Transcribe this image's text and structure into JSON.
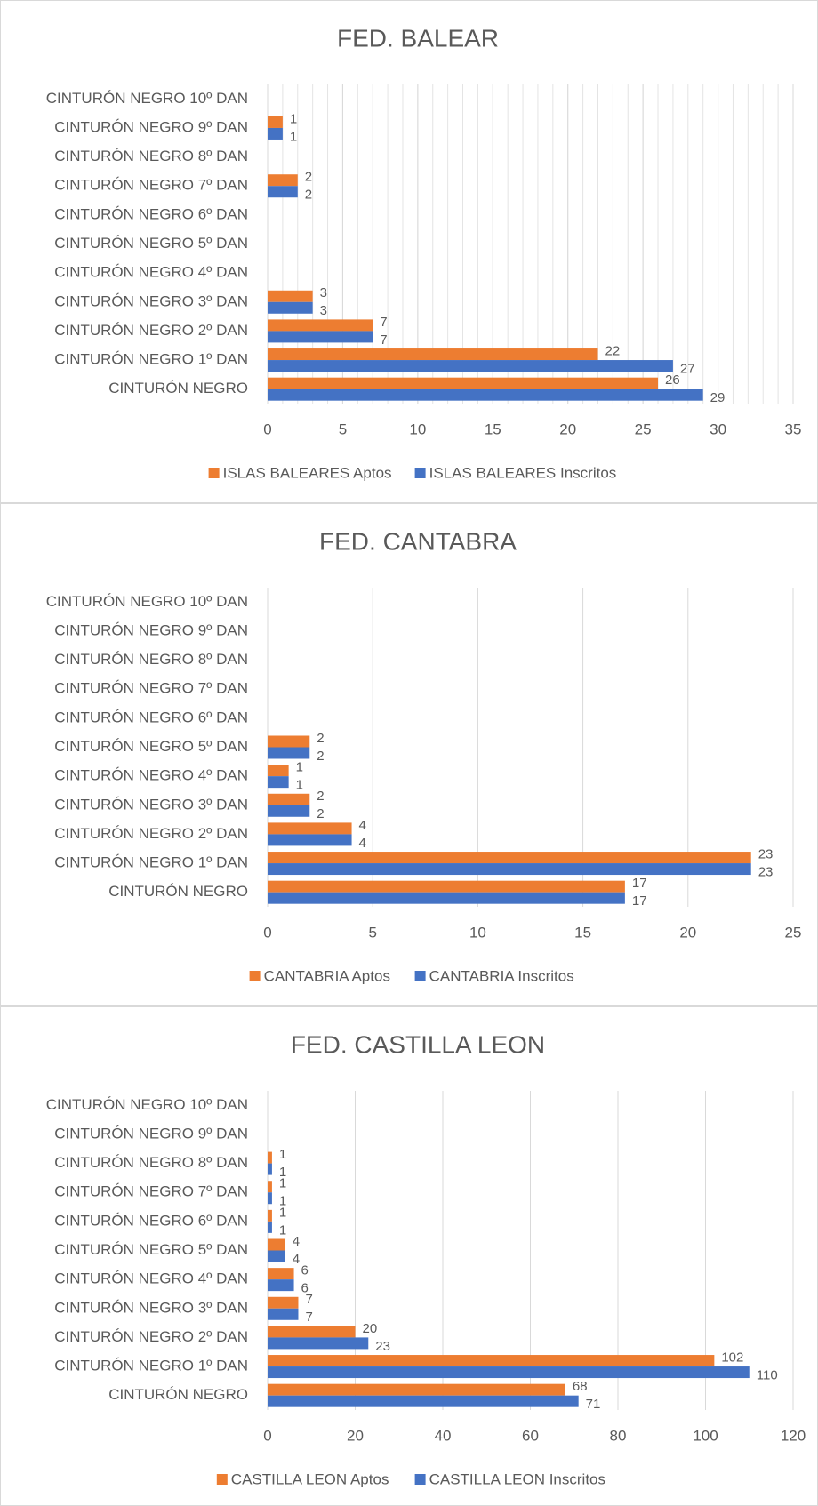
{
  "chart_data": [
    {
      "type": "hbar",
      "title": "FED. BALEAR",
      "categories": [
        "CINTURÓN NEGRO",
        "CINTURÓN NEGRO 1º DAN",
        "CINTURÓN NEGRO 2º DAN",
        "CINTURÓN NEGRO 3º DAN",
        "CINTURÓN NEGRO 4º DAN",
        "CINTURÓN NEGRO 5º DAN",
        "CINTURÓN NEGRO 6º DAN",
        "CINTURÓN NEGRO 7º DAN",
        "CINTURÓN NEGRO 8º DAN",
        "CINTURÓN NEGRO 9º DAN",
        "CINTURÓN NEGRO 10º DAN"
      ],
      "series": [
        {
          "name": "ISLAS BALEARES Aptos",
          "color": "#ed7d31",
          "values": [
            26,
            22,
            7,
            3,
            null,
            null,
            null,
            2,
            null,
            1,
            null
          ]
        },
        {
          "name": "ISLAS BALEARES Inscritos",
          "color": "#4472c4",
          "values": [
            29,
            27,
            7,
            3,
            null,
            null,
            null,
            2,
            null,
            1,
            null
          ]
        }
      ],
      "xlim": [
        0,
        35
      ],
      "xticks": [
        0,
        5,
        10,
        15,
        20,
        25,
        30,
        35
      ],
      "xminor": 1,
      "grid": true,
      "legend": "bottom"
    },
    {
      "type": "hbar",
      "title": "FED. CANTABRA",
      "categories": [
        "CINTURÓN NEGRO",
        "CINTURÓN NEGRO 1º DAN",
        "CINTURÓN NEGRO 2º DAN",
        "CINTURÓN NEGRO 3º DAN",
        "CINTURÓN NEGRO 4º DAN",
        "CINTURÓN NEGRO 5º DAN",
        "CINTURÓN NEGRO 6º DAN",
        "CINTURÓN NEGRO 7º DAN",
        "CINTURÓN NEGRO 8º DAN",
        "CINTURÓN NEGRO 9º DAN",
        "CINTURÓN NEGRO 10º DAN"
      ],
      "series": [
        {
          "name": "CANTABRIA Aptos",
          "color": "#ed7d31",
          "values": [
            17,
            23,
            4,
            2,
            1,
            2,
            null,
            null,
            null,
            null,
            null
          ]
        },
        {
          "name": "CANTABRIA Inscritos",
          "color": "#4472c4",
          "values": [
            17,
            23,
            4,
            2,
            1,
            2,
            null,
            null,
            null,
            null,
            null
          ]
        }
      ],
      "xlim": [
        0,
        25
      ],
      "xticks": [
        0,
        5,
        10,
        15,
        20,
        25
      ],
      "grid": true,
      "legend": "bottom"
    },
    {
      "type": "hbar",
      "title": "FED. CASTILLA LEON",
      "categories": [
        "CINTURÓN NEGRO",
        "CINTURÓN NEGRO 1º DAN",
        "CINTURÓN NEGRO 2º DAN",
        "CINTURÓN NEGRO 3º DAN",
        "CINTURÓN NEGRO 4º DAN",
        "CINTURÓN NEGRO 5º DAN",
        "CINTURÓN NEGRO 6º DAN",
        "CINTURÓN NEGRO 7º DAN",
        "CINTURÓN NEGRO 8º DAN",
        "CINTURÓN NEGRO 9º DAN",
        "CINTURÓN NEGRO 10º DAN"
      ],
      "series": [
        {
          "name": "CASTILLA LEON Aptos",
          "color": "#ed7d31",
          "values": [
            68,
            102,
            20,
            7,
            6,
            4,
            1,
            1,
            1,
            null,
            null
          ]
        },
        {
          "name": "CASTILLA LEON Inscritos",
          "color": "#4472c4",
          "values": [
            71,
            110,
            23,
            7,
            6,
            4,
            1,
            1,
            1,
            null,
            null
          ]
        }
      ],
      "xlim": [
        0,
        120
      ],
      "xticks": [
        0,
        20,
        40,
        60,
        80,
        100,
        120
      ],
      "grid": true,
      "legend": "bottom"
    }
  ]
}
